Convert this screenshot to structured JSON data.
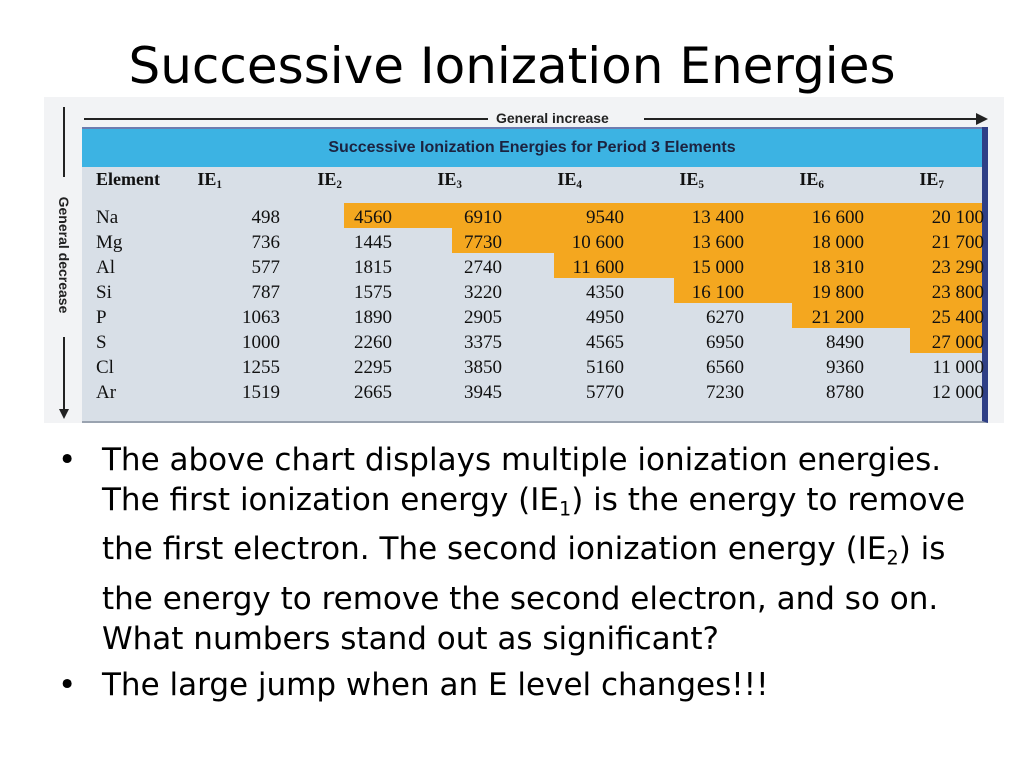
{
  "slide": {
    "title": "Successive Ionization Energies"
  },
  "figure": {
    "top_arrow_label": "General increase",
    "side_arrow_label": "General decrease",
    "table_title": "Successive Ionization Energies for Period 3 Elements",
    "header_element": "Element",
    "ie_prefix": "IE",
    "ie_indices": [
      "1",
      "2",
      "3",
      "4",
      "5",
      "6",
      "7"
    ],
    "rows": [
      {
        "element": "Na",
        "values": [
          "498",
          "4560",
          "6910",
          "9540",
          "13 400",
          "16 600",
          "20 100"
        ],
        "core_from": 1
      },
      {
        "element": "Mg",
        "values": [
          "736",
          "1445",
          "7730",
          "10 600",
          "13 600",
          "18 000",
          "21 700"
        ],
        "core_from": 2
      },
      {
        "element": "Al",
        "values": [
          "577",
          "1815",
          "2740",
          "11 600",
          "15 000",
          "18 310",
          "23 290"
        ],
        "core_from": 3
      },
      {
        "element": "Si",
        "values": [
          "787",
          "1575",
          "3220",
          "4350",
          "16 100",
          "19 800",
          "23 800"
        ],
        "core_from": 4
      },
      {
        "element": "P",
        "values": [
          "1063",
          "1890",
          "2905",
          "4950",
          "6270",
          "21 200",
          "25 400"
        ],
        "core_from": 5
      },
      {
        "element": "S",
        "values": [
          "1000",
          "2260",
          "3375",
          "4565",
          "6950",
          "8490",
          "27 000"
        ],
        "core_from": 6
      },
      {
        "element": "Cl",
        "values": [
          "1255",
          "2295",
          "3850",
          "5160",
          "6560",
          "9360",
          "11 000"
        ],
        "core_from": 7
      },
      {
        "element": "Ar",
        "values": [
          "1519",
          "2665",
          "3945",
          "5770",
          "7230",
          "8780",
          "12 000"
        ],
        "core_from": 7
      }
    ],
    "colors": {
      "highlight": "#f4a71f",
      "banner": "#3cb3e3",
      "table_bg": "#d8dfe7"
    }
  },
  "bullets": [
    {
      "parts": [
        {
          "t": "The above chart displays multiple ionization energies.  The first ionization energy (IE"
        },
        {
          "sub": "1"
        },
        {
          "t": ") is the energy to remove the first electron.  The second ionization energy (IE"
        },
        {
          "sub": "2"
        },
        {
          "t": ") is the energy to remove the second electron, and so on.  What numbers stand out as significant?"
        }
      ]
    },
    {
      "parts": [
        {
          "t": "The large jump when an E level changes!!!"
        }
      ]
    }
  ],
  "bullet_glyph": "•"
}
